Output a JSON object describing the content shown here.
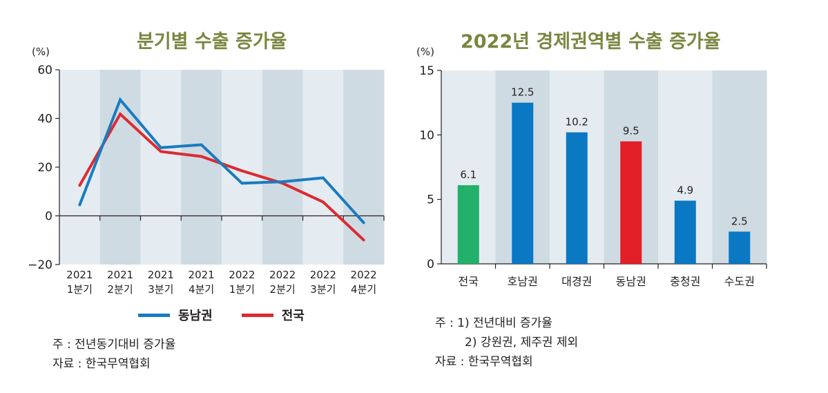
{
  "chart_data": [
    {
      "type": "line",
      "title": "분기별 수출 증가율",
      "ylabel": "(%)",
      "xlabel": "",
      "ylim": [
        -20,
        60
      ],
      "yticks": [
        -20,
        0,
        20,
        40,
        60
      ],
      "ytick_labels": [
        "−20",
        "0",
        "20",
        "40",
        "60"
      ],
      "categories": [
        [
          "2021",
          "1분기"
        ],
        [
          "2021",
          "2분기"
        ],
        [
          "2021",
          "3분기"
        ],
        [
          "2021",
          "4분기"
        ],
        [
          "2022",
          "1분기"
        ],
        [
          "2022",
          "2분기"
        ],
        [
          "2022",
          "3분기"
        ],
        [
          "2022",
          "4분기"
        ]
      ],
      "series": [
        {
          "name": "동남권",
          "color": "#1a7bbf",
          "values": [
            4.5,
            47.7,
            28.0,
            29.2,
            13.4,
            14.0,
            15.6,
            -2.8
          ]
        },
        {
          "name": "전국",
          "color": "#dc2a30",
          "values": [
            12.5,
            41.8,
            26.4,
            24.4,
            18.5,
            13.4,
            5.7,
            -9.9
          ]
        }
      ],
      "legend": "bottom-center",
      "grid": false,
      "band_colors": [
        "#e4ecf1",
        "#cfdbe3"
      ],
      "notes": [
        "주 : 전년동기대비 증가율",
        "자료 : 한국무역협회"
      ]
    },
    {
      "type": "bar",
      "title": "2022년 경제권역별 수출 증가율",
      "ylabel": "(%)",
      "xlabel": "",
      "ylim": [
        0,
        15
      ],
      "yticks": [
        0,
        5,
        10,
        15
      ],
      "ytick_labels": [
        "0",
        "5",
        "10",
        "15"
      ],
      "categories": [
        "전국",
        "호남권",
        "대경권",
        "동남권",
        "충청권",
        "수도권"
      ],
      "values": [
        6.1,
        12.5,
        10.2,
        9.5,
        4.9,
        2.5
      ],
      "value_labels": [
        "6.1",
        "12.5",
        "10.2",
        "9.5",
        "4.9",
        "2.5"
      ],
      "bar_colors": [
        "#22b06a",
        "#0a78c2",
        "#0a78c2",
        "#e21e26",
        "#0a78c2",
        "#0a78c2"
      ],
      "grid": false,
      "band_colors": [
        "#e4ecf1",
        "#cfdbe3"
      ],
      "notes": [
        "주 : 1)  전년대비 증가율",
        "2) 강원권, 제주권 제외",
        "자료 : 한국무역협회"
      ]
    }
  ]
}
